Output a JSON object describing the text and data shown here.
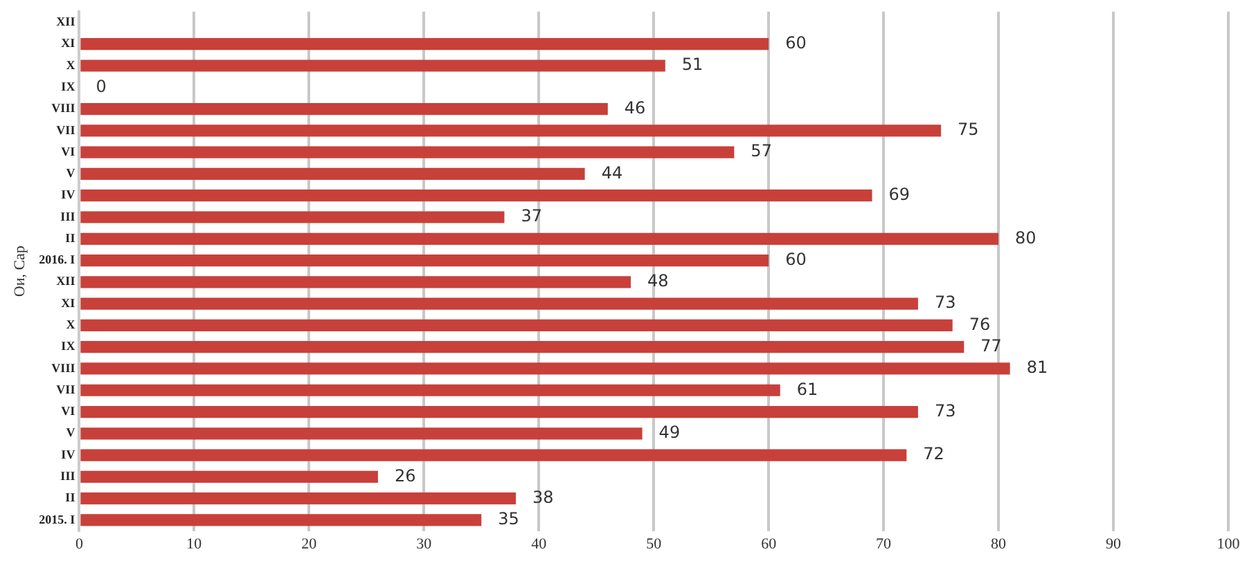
{
  "chart_data": {
    "type": "bar",
    "orientation": "horizontal",
    "ylabel": "Ои, Сар",
    "categories": [
      "XII",
      "XI",
      "X",
      "IX",
      "VIII",
      "VII",
      "VI",
      "V",
      "IV",
      "III",
      "II",
      "2016. I",
      "XII",
      "XI",
      "X",
      "IX",
      "VIII",
      "VII",
      "VI",
      "V",
      "IV",
      "III",
      "II",
      "2015. I"
    ],
    "values": [
      null,
      60,
      51,
      0,
      46,
      75,
      57,
      44,
      69,
      37,
      80,
      60,
      48,
      73,
      76,
      77,
      81,
      61,
      73,
      49,
      72,
      26,
      38,
      35
    ],
    "color": "#c8403a",
    "xlim": [
      0,
      100
    ],
    "xticks": [
      0,
      10,
      20,
      30,
      40,
      50,
      60,
      70,
      80,
      90,
      100
    ],
    "grid": "x",
    "legend": false,
    "data_labels": true
  }
}
